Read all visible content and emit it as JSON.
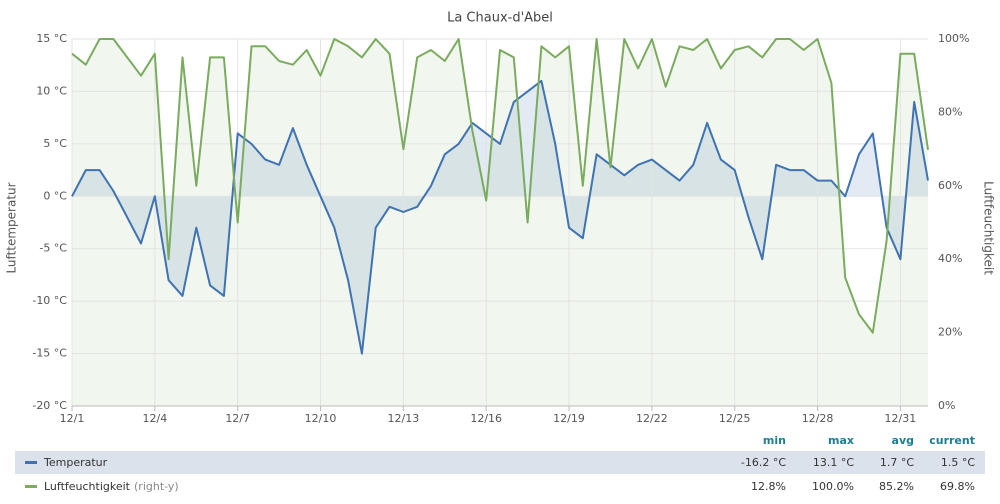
{
  "chart_data": {
    "type": "line",
    "title": "La Chaux-d'Abel",
    "y_label": "Lufttemperatur",
    "y2_label": "Luftfeuchtigkeit",
    "x": [
      1,
      1.5,
      2,
      2.5,
      3,
      3.5,
      4,
      4.5,
      5,
      5.5,
      6,
      6.5,
      7,
      7.5,
      8,
      8.5,
      9,
      9.5,
      10,
      10.5,
      11,
      11.5,
      12,
      12.5,
      13,
      13.5,
      14,
      14.5,
      15,
      15.5,
      16,
      16.5,
      17,
      17.5,
      18,
      18.5,
      19,
      19.5,
      20,
      20.5,
      21,
      21.5,
      22,
      22.5,
      23,
      23.5,
      24,
      24.5,
      25,
      25.5,
      26,
      26.5,
      27,
      27.5,
      28,
      28.5,
      29,
      29.5,
      30,
      30.5,
      31,
      31.5,
      32
    ],
    "xlim": [
      1,
      32
    ],
    "xticks": [
      {
        "value": 1,
        "label": "12/1"
      },
      {
        "value": 4,
        "label": "12/4"
      },
      {
        "value": 7,
        "label": "12/7"
      },
      {
        "value": 10,
        "label": "12/10"
      },
      {
        "value": 13,
        "label": "12/13"
      },
      {
        "value": 16,
        "label": "12/16"
      },
      {
        "value": 19,
        "label": "12/19"
      },
      {
        "value": 22,
        "label": "12/22"
      },
      {
        "value": 25,
        "label": "12/25"
      },
      {
        "value": 28,
        "label": "12/28"
      },
      {
        "value": 31,
        "label": "12/31"
      }
    ],
    "ylim": [
      -20,
      15
    ],
    "yticks": [
      {
        "value": -20,
        "label": "-20 °C"
      },
      {
        "value": -15,
        "label": "-15 °C"
      },
      {
        "value": -10,
        "label": "-10 °C"
      },
      {
        "value": -5,
        "label": "-5 °C"
      },
      {
        "value": 0,
        "label": "0 °C"
      },
      {
        "value": 5,
        "label": "5 °C"
      },
      {
        "value": 10,
        "label": "10 °C"
      },
      {
        "value": 15,
        "label": "15 °C"
      }
    ],
    "y2lim": [
      0,
      100
    ],
    "y2ticks": [
      {
        "value": 0,
        "label": "0%"
      },
      {
        "value": 20,
        "label": "20%"
      },
      {
        "value": 40,
        "label": "40%"
      },
      {
        "value": 60,
        "label": "60%"
      },
      {
        "value": 80,
        "label": "80%"
      },
      {
        "value": 100,
        "label": "100%"
      }
    ],
    "grid": true,
    "series": [
      {
        "name": "Temperatur",
        "color": "#3f73b1",
        "values": [
          0,
          2.5,
          2.5,
          0.5,
          -2,
          -4.5,
          0,
          -8,
          -9.5,
          -3,
          -8.5,
          -9.5,
          6,
          5,
          3.5,
          3,
          6.5,
          3,
          0,
          -3,
          -8,
          -15,
          -3,
          -1,
          -1.5,
          -1,
          1,
          4,
          5,
          7,
          6,
          5,
          9,
          10,
          11,
          5,
          -3,
          -4,
          4,
          3,
          2,
          3,
          3.5,
          2.5,
          1.5,
          3,
          7,
          3.5,
          2.5,
          -2,
          -6,
          3,
          2.5,
          2.5,
          1.5,
          1.5,
          0,
          4,
          6,
          -3,
          -6,
          9,
          1.5
        ]
      },
      {
        "name": "Luftfeuchtigkeit",
        "note": "(right-y)",
        "axis": "y2",
        "color": "#7aab5e",
        "values": [
          96,
          93,
          100,
          100,
          95,
          90,
          96,
          40,
          95,
          60,
          95,
          95,
          50,
          98,
          98,
          94,
          93,
          97,
          90,
          100,
          98,
          95,
          100,
          96,
          70,
          95,
          97,
          94,
          100,
          75,
          56,
          97,
          95,
          50,
          98,
          95,
          98,
          60,
          100,
          65,
          100,
          92,
          100,
          87,
          98,
          97,
          100,
          92,
          97,
          98,
          95,
          100,
          100,
          97,
          100,
          88,
          35,
          25,
          20,
          45,
          96,
          96,
          69.8
        ]
      }
    ],
    "summary": {
      "columns": [
        "min",
        "max",
        "avg",
        "current"
      ],
      "rows": [
        {
          "values": [
            -16.2,
            13.1,
            1.7,
            1.5
          ],
          "value_labels": [
            "-16.2 °C",
            "13.1 °C",
            "1.7 °C",
            "1.5 °C"
          ]
        },
        {
          "values": [
            12.8,
            100,
            85.2,
            69.8
          ],
          "value_labels": [
            "12.8%",
            "100.0%",
            "85.2%",
            "69.8%"
          ]
        }
      ]
    }
  }
}
